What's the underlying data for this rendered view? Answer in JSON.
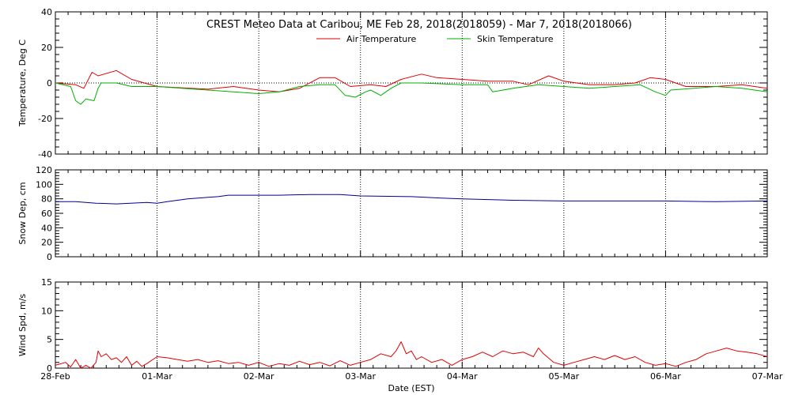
{
  "title": "CREST Meteo Data at Caribou, ME   Feb 28, 2018(2018059) - Mar  7, 2018(2018066)",
  "xlabel": "Date (EST)",
  "colors": {
    "air": "#e00000",
    "skin": "#00b000",
    "snow": "#000090",
    "wind": "#e00000"
  },
  "chart_data": [
    {
      "type": "line",
      "ylabel": "Temperature, Deg C",
      "ylim": [
        -40,
        40
      ],
      "yticks": [
        -40,
        -20,
        0,
        20,
        40
      ],
      "x": [
        "28-Feb",
        "01-Mar",
        "02-Mar",
        "03-Mar",
        "04-Mar",
        "05-Mar",
        "06-Mar",
        "07-Mar"
      ],
      "xlim": [
        0,
        7
      ],
      "grid": true,
      "legend": "top-center",
      "series": [
        {
          "name": "Air Temperature",
          "points": [
            [
              0,
              0
            ],
            [
              0.2,
              -1
            ],
            [
              0.28,
              -3
            ],
            [
              0.36,
              6
            ],
            [
              0.42,
              4
            ],
            [
              0.6,
              7
            ],
            [
              0.75,
              2
            ],
            [
              1,
              -2
            ],
            [
              1.5,
              -3.5
            ],
            [
              1.75,
              -2
            ],
            [
              2,
              -4
            ],
            [
              2.2,
              -5
            ],
            [
              2.4,
              -3
            ],
            [
              2.6,
              3
            ],
            [
              2.75,
              3
            ],
            [
              2.9,
              -2
            ],
            [
              3.1,
              -1
            ],
            [
              3.25,
              -2
            ],
            [
              3.4,
              2
            ],
            [
              3.6,
              5
            ],
            [
              3.75,
              3
            ],
            [
              4,
              2
            ],
            [
              4.25,
              1
            ],
            [
              4.5,
              1
            ],
            [
              4.65,
              -1
            ],
            [
              4.85,
              4
            ],
            [
              5,
              1
            ],
            [
              5.25,
              -1
            ],
            [
              5.5,
              -1
            ],
            [
              5.7,
              0
            ],
            [
              5.85,
              3
            ],
            [
              6,
              2
            ],
            [
              6.2,
              -2
            ],
            [
              6.5,
              -2
            ],
            [
              6.75,
              -1
            ],
            [
              7,
              -3
            ]
          ]
        },
        {
          "name": "Skin Temperature",
          "points": [
            [
              0,
              0
            ],
            [
              0.15,
              -2
            ],
            [
              0.2,
              -10
            ],
            [
              0.25,
              -12
            ],
            [
              0.3,
              -9
            ],
            [
              0.38,
              -10
            ],
            [
              0.42,
              -3
            ],
            [
              0.45,
              0
            ],
            [
              0.6,
              0
            ],
            [
              0.75,
              -2
            ],
            [
              1,
              -2
            ],
            [
              1.5,
              -4
            ],
            [
              2,
              -6
            ],
            [
              2.2,
              -5
            ],
            [
              2.4,
              -2
            ],
            [
              2.6,
              -1
            ],
            [
              2.75,
              -1
            ],
            [
              2.85,
              -7
            ],
            [
              2.95,
              -8
            ],
            [
              3.05,
              -5
            ],
            [
              3.1,
              -4
            ],
            [
              3.2,
              -7
            ],
            [
              3.3,
              -3
            ],
            [
              3.4,
              0
            ],
            [
              3.6,
              0
            ],
            [
              4,
              -1
            ],
            [
              4.25,
              -1
            ],
            [
              4.3,
              -5
            ],
            [
              4.5,
              -3
            ],
            [
              4.75,
              -1
            ],
            [
              5,
              -2
            ],
            [
              5.25,
              -3
            ],
            [
              5.5,
              -2
            ],
            [
              5.75,
              -1
            ],
            [
              5.9,
              -5
            ],
            [
              6,
              -7
            ],
            [
              6.05,
              -4
            ],
            [
              6.5,
              -2
            ],
            [
              6.75,
              -3
            ],
            [
              7,
              -5
            ]
          ]
        }
      ]
    },
    {
      "type": "line",
      "ylabel": "Snow Dep, cm",
      "ylim": [
        0,
        120
      ],
      "yticks": [
        0,
        20,
        40,
        60,
        80,
        100,
        120
      ],
      "x": [
        "28-Feb",
        "01-Mar",
        "02-Mar",
        "03-Mar",
        "04-Mar",
        "05-Mar",
        "06-Mar",
        "07-Mar"
      ],
      "xlim": [
        0,
        7
      ],
      "grid": true,
      "series": [
        {
          "name": "Snow Depth",
          "points": [
            [
              0,
              76
            ],
            [
              0.2,
              76
            ],
            [
              0.4,
              74
            ],
            [
              0.6,
              73
            ],
            [
              0.9,
              75
            ],
            [
              1,
              74
            ],
            [
              1.1,
              76
            ],
            [
              1.3,
              80
            ],
            [
              1.5,
              82
            ],
            [
              1.6,
              83
            ],
            [
              1.7,
              85
            ],
            [
              2,
              85
            ],
            [
              2.2,
              85
            ],
            [
              2.5,
              86
            ],
            [
              2.8,
              86
            ],
            [
              3,
              84
            ],
            [
              3.5,
              83
            ],
            [
              3.8,
              81
            ],
            [
              4,
              80
            ],
            [
              4.5,
              78
            ],
            [
              5,
              77
            ],
            [
              5.5,
              77
            ],
            [
              6,
              77
            ],
            [
              6.5,
              76
            ],
            [
              7,
              77
            ]
          ]
        }
      ]
    },
    {
      "type": "line",
      "ylabel": "Wind Spd, m/s",
      "ylim": [
        0,
        15
      ],
      "yticks": [
        0,
        5,
        10,
        15
      ],
      "x": [
        "28-Feb",
        "01-Mar",
        "02-Mar",
        "03-Mar",
        "04-Mar",
        "05-Mar",
        "06-Mar",
        "07-Mar"
      ],
      "xlim": [
        0,
        7
      ],
      "grid": true,
      "series": [
        {
          "name": "Wind Speed",
          "points": [
            [
              0,
              0.5
            ],
            [
              0.1,
              1
            ],
            [
              0.15,
              0.2
            ],
            [
              0.2,
              1.5
            ],
            [
              0.25,
              0
            ],
            [
              0.3,
              0.5
            ],
            [
              0.35,
              0
            ],
            [
              0.4,
              1
            ],
            [
              0.42,
              3
            ],
            [
              0.45,
              2
            ],
            [
              0.5,
              2.5
            ],
            [
              0.55,
              1.5
            ],
            [
              0.6,
              1.8
            ],
            [
              0.65,
              1
            ],
            [
              0.7,
              2
            ],
            [
              0.75,
              0.5
            ],
            [
              0.8,
              1.2
            ],
            [
              0.85,
              0.3
            ],
            [
              0.9,
              0.8
            ],
            [
              1,
              2
            ],
            [
              1.1,
              1.8
            ],
            [
              1.2,
              1.5
            ],
            [
              1.3,
              1.2
            ],
            [
              1.4,
              1.5
            ],
            [
              1.5,
              1
            ],
            [
              1.6,
              1.3
            ],
            [
              1.7,
              0.8
            ],
            [
              1.8,
              1
            ],
            [
              1.9,
              0.5
            ],
            [
              2,
              1
            ],
            [
              2.1,
              0.3
            ],
            [
              2.2,
              0.8
            ],
            [
              2.3,
              0.5
            ],
            [
              2.4,
              1.2
            ],
            [
              2.5,
              0.6
            ],
            [
              2.6,
              1
            ],
            [
              2.7,
              0.4
            ],
            [
              2.8,
              1.3
            ],
            [
              2.9,
              0.5
            ],
            [
              3,
              1
            ],
            [
              3.1,
              1.5
            ],
            [
              3.2,
              2.5
            ],
            [
              3.3,
              2
            ],
            [
              3.35,
              3
            ],
            [
              3.4,
              4.6
            ],
            [
              3.45,
              2.5
            ],
            [
              3.5,
              3
            ],
            [
              3.55,
              1.5
            ],
            [
              3.6,
              2
            ],
            [
              3.7,
              1
            ],
            [
              3.8,
              1.5
            ],
            [
              3.9,
              0.5
            ],
            [
              4,
              1.5
            ],
            [
              4.1,
              2
            ],
            [
              4.2,
              2.8
            ],
            [
              4.3,
              2
            ],
            [
              4.4,
              3
            ],
            [
              4.5,
              2.5
            ],
            [
              4.6,
              2.8
            ],
            [
              4.7,
              2
            ],
            [
              4.75,
              3.5
            ],
            [
              4.8,
              2.5
            ],
            [
              4.9,
              1
            ],
            [
              5,
              0.5
            ],
            [
              5.1,
              1
            ],
            [
              5.2,
              1.5
            ],
            [
              5.3,
              2
            ],
            [
              5.4,
              1.5
            ],
            [
              5.5,
              2.2
            ],
            [
              5.6,
              1.5
            ],
            [
              5.7,
              2
            ],
            [
              5.8,
              1
            ],
            [
              5.9,
              0.5
            ],
            [
              6,
              0.8
            ],
            [
              6.1,
              0.3
            ],
            [
              6.2,
              1
            ],
            [
              6.3,
              1.5
            ],
            [
              6.4,
              2.5
            ],
            [
              6.5,
              3
            ],
            [
              6.6,
              3.5
            ],
            [
              6.7,
              3
            ],
            [
              6.8,
              2.8
            ],
            [
              6.9,
              2.5
            ],
            [
              7,
              2
            ]
          ]
        }
      ]
    }
  ]
}
